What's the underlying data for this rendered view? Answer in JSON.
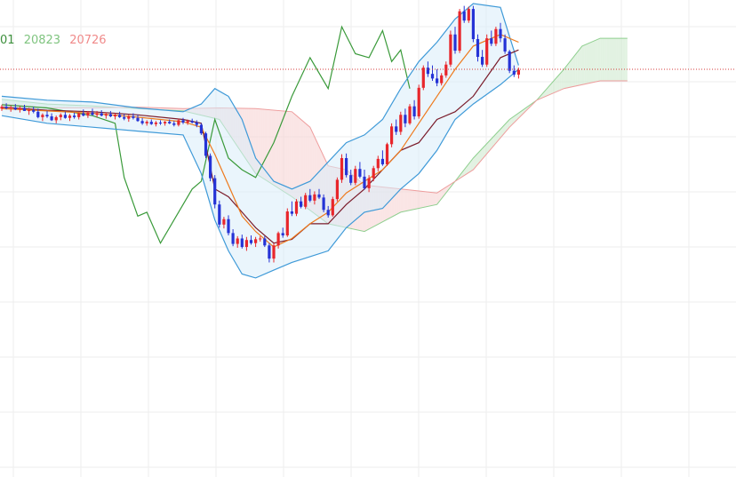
{
  "legend": {
    "v1": "01",
    "v2": "20823",
    "v3": "20726"
  },
  "colors": {
    "up": "#e8262b",
    "down": "#2533d6",
    "lagging": "#3a9a3a",
    "bb": "#3f9ad8",
    "bb_fill": "#d9ecfa",
    "ma_orange": "#ee7a1d",
    "ma_dark": "#7a1b2a",
    "kumo_green": "#cfe9cf",
    "kumo_red": "#f6d3d3",
    "span_a": "#8fcf8f",
    "span_b": "#ee9d9d",
    "price_line": "#d43a3a",
    "legend_1": "#3c8f3c",
    "legend_2": "#7fc47f",
    "legend_3": "#f08a8a",
    "grid": "#eeeeee"
  },
  "chart_data": {
    "type": "candlestick",
    "x_range": [
      0,
      160
    ],
    "y_range": [
      20000,
      21000
    ],
    "current_price_line": 20830,
    "candles": [
      [
        0,
        20728,
        20738,
        20722,
        20733
      ],
      [
        1,
        20733,
        20742,
        20726,
        20729
      ],
      [
        2,
        20729,
        20736,
        20720,
        20731
      ],
      [
        3,
        20731,
        20740,
        20724,
        20726
      ],
      [
        4,
        20726,
        20734,
        20718,
        20730
      ],
      [
        5,
        20730,
        20738,
        20722,
        20722
      ],
      [
        6,
        20722,
        20730,
        20712,
        20724
      ],
      [
        7,
        20724,
        20733,
        20716,
        20720
      ],
      [
        8,
        20720,
        20728,
        20703,
        20706
      ],
      [
        9,
        20706,
        20716,
        20696,
        20712
      ],
      [
        10,
        20712,
        20722,
        20704,
        20708
      ],
      [
        11,
        20708,
        20716,
        20696,
        20698
      ],
      [
        12,
        20698,
        20710,
        20690,
        20706
      ],
      [
        13,
        20706,
        20716,
        20698,
        20712
      ],
      [
        14,
        20712,
        20720,
        20702,
        20704
      ],
      [
        15,
        20704,
        20714,
        20696,
        20710
      ],
      [
        16,
        20710,
        20718,
        20702,
        20706
      ],
      [
        17,
        20706,
        20718,
        20700,
        20716
      ],
      [
        18,
        20716,
        20726,
        20708,
        20710
      ],
      [
        19,
        20710,
        20722,
        20704,
        20718
      ],
      [
        20,
        20718,
        20728,
        20710,
        20712
      ],
      [
        21,
        20712,
        20722,
        20706,
        20716
      ],
      [
        22,
        20716,
        20724,
        20708,
        20710
      ],
      [
        23,
        20710,
        20718,
        20702,
        20714
      ],
      [
        24,
        20714,
        20722,
        20706,
        20708
      ],
      [
        25,
        20708,
        20716,
        20700,
        20712
      ],
      [
        26,
        20712,
        20720,
        20704,
        20706
      ],
      [
        27,
        20706,
        20714,
        20698,
        20702
      ],
      [
        28,
        20702,
        20712,
        20694,
        20708
      ],
      [
        29,
        20708,
        20716,
        20700,
        20704
      ],
      [
        30,
        20704,
        20712,
        20694,
        20696
      ],
      [
        31,
        20696,
        20704,
        20686,
        20690
      ],
      [
        32,
        20690,
        20698,
        20684,
        20694
      ],
      [
        33,
        20694,
        20700,
        20686,
        20688
      ],
      [
        34,
        20688,
        20696,
        20682,
        20692
      ],
      [
        35,
        20692,
        20698,
        20686,
        20690
      ],
      [
        36,
        20690,
        20696,
        20684,
        20694
      ],
      [
        37,
        20694,
        20700,
        20688,
        20690
      ],
      [
        38,
        20690,
        20696,
        20682,
        20686
      ],
      [
        39,
        20686,
        20702,
        20682,
        20698
      ],
      [
        40,
        20698,
        20704,
        20688,
        20692
      ],
      [
        41,
        20692,
        20700,
        20686,
        20696
      ],
      [
        42,
        20696,
        20702,
        20690,
        20692
      ],
      [
        43,
        20692,
        20698,
        20680,
        20686
      ],
      [
        44,
        20686,
        20690,
        20660,
        20664
      ],
      [
        45,
        20664,
        20668,
        20600,
        20606
      ],
      [
        46,
        20606,
        20612,
        20540,
        20548
      ],
      [
        47,
        20548,
        20556,
        20470,
        20480
      ],
      [
        48,
        20480,
        20490,
        20420,
        20428
      ],
      [
        49,
        20428,
        20448,
        20418,
        20442
      ],
      [
        50,
        20442,
        20452,
        20400,
        20406
      ],
      [
        51,
        20406,
        20416,
        20372,
        20378
      ],
      [
        52,
        20378,
        20398,
        20368,
        20392
      ],
      [
        53,
        20392,
        20402,
        20366,
        20370
      ],
      [
        54,
        20370,
        20396,
        20360,
        20388
      ],
      [
        55,
        20388,
        20400,
        20376,
        20380
      ],
      [
        56,
        20380,
        20396,
        20370,
        20390
      ],
      [
        57,
        20390,
        20398,
        20384,
        20392
      ],
      [
        58,
        20392,
        20398,
        20370,
        20374
      ],
      [
        59,
        20374,
        20380,
        20330,
        20340
      ],
      [
        60,
        20340,
        20380,
        20330,
        20374
      ],
      [
        61,
        20374,
        20410,
        20366,
        20406
      ],
      [
        62,
        20406,
        20420,
        20394,
        20400
      ],
      [
        63,
        20400,
        20470,
        20396,
        20462
      ],
      [
        64,
        20462,
        20488,
        20450,
        20456
      ],
      [
        65,
        20456,
        20494,
        20450,
        20488
      ],
      [
        66,
        20488,
        20500,
        20470,
        20474
      ],
      [
        67,
        20474,
        20510,
        20468,
        20504
      ],
      [
        68,
        20504,
        20520,
        20486,
        20490
      ],
      [
        69,
        20490,
        20514,
        20480,
        20506
      ],
      [
        70,
        20506,
        20520,
        20494,
        20498
      ],
      [
        71,
        20498,
        20506,
        20460,
        20466
      ],
      [
        72,
        20466,
        20476,
        20446,
        20452
      ],
      [
        73,
        20452,
        20500,
        20448,
        20494
      ],
      [
        74,
        20494,
        20550,
        20488,
        20544
      ],
      [
        75,
        20544,
        20610,
        20536,
        20600
      ],
      [
        76,
        20600,
        20612,
        20550,
        20556
      ],
      [
        77,
        20556,
        20570,
        20530,
        20536
      ],
      [
        78,
        20536,
        20580,
        20530,
        20572
      ],
      [
        79,
        20572,
        20590,
        20548,
        20552
      ],
      [
        80,
        20552,
        20570,
        20518,
        20522
      ],
      [
        81,
        20522,
        20556,
        20512,
        20548
      ],
      [
        82,
        20548,
        20580,
        20540,
        20574
      ],
      [
        83,
        20574,
        20606,
        20566,
        20598
      ],
      [
        84,
        20598,
        20620,
        20580,
        20584
      ],
      [
        85,
        20584,
        20640,
        20580,
        20636
      ],
      [
        86,
        20636,
        20690,
        20628,
        20682
      ],
      [
        87,
        20682,
        20700,
        20660,
        20668
      ],
      [
        88,
        20668,
        20720,
        20660,
        20712
      ],
      [
        89,
        20712,
        20728,
        20680,
        20690
      ],
      [
        90,
        20690,
        20740,
        20686,
        20734
      ],
      [
        91,
        20734,
        20750,
        20700,
        20708
      ],
      [
        92,
        20708,
        20790,
        20702,
        20782
      ],
      [
        93,
        20782,
        20840,
        20776,
        20834
      ],
      [
        94,
        20834,
        20850,
        20810,
        20818
      ],
      [
        95,
        20818,
        20840,
        20800,
        20806
      ],
      [
        96,
        20806,
        20830,
        20786,
        20794
      ],
      [
        97,
        20794,
        20820,
        20788,
        20814
      ],
      [
        98,
        20814,
        20850,
        20808,
        20842
      ],
      [
        99,
        20842,
        20930,
        20836,
        20920
      ],
      [
        100,
        20920,
        20940,
        20870,
        20878
      ],
      [
        101,
        20878,
        20986,
        20872,
        20980
      ],
      [
        102,
        20980,
        20994,
        20950,
        20956
      ],
      [
        103,
        20956,
        20992,
        20950,
        20986
      ],
      [
        104,
        20986,
        20994,
        20900,
        20908
      ],
      [
        105,
        20908,
        20920,
        20850,
        20862
      ],
      [
        106,
        20862,
        20880,
        20836,
        20842
      ],
      [
        107,
        20842,
        20920,
        20836,
        20910
      ],
      [
        108,
        20910,
        20930,
        20890,
        20896
      ],
      [
        109,
        20896,
        20940,
        20890,
        20934
      ],
      [
        110,
        20934,
        20950,
        20900,
        20910
      ],
      [
        111,
        20910,
        20920,
        20870,
        20876
      ],
      [
        112,
        20876,
        20880,
        20820,
        20826
      ],
      [
        113,
        20826,
        20840,
        20810,
        20816
      ],
      [
        114,
        20816,
        20834,
        20806,
        20828
      ]
    ],
    "bb_upper": [
      [
        0,
        20760
      ],
      [
        10,
        20750
      ],
      [
        20,
        20745
      ],
      [
        30,
        20730
      ],
      [
        40,
        20720
      ],
      [
        44,
        20740
      ],
      [
        47,
        20780
      ],
      [
        50,
        20760
      ],
      [
        53,
        20700
      ],
      [
        56,
        20600
      ],
      [
        60,
        20540
      ],
      [
        64,
        20520
      ],
      [
        68,
        20540
      ],
      [
        72,
        20590
      ],
      [
        76,
        20640
      ],
      [
        80,
        20660
      ],
      [
        84,
        20700
      ],
      [
        88,
        20780
      ],
      [
        92,
        20850
      ],
      [
        96,
        20900
      ],
      [
        100,
        20960
      ],
      [
        104,
        21000
      ],
      [
        110,
        20990
      ],
      [
        114,
        20840
      ]
    ],
    "bb_lower": [
      [
        0,
        20710
      ],
      [
        10,
        20690
      ],
      [
        20,
        20680
      ],
      [
        30,
        20670
      ],
      [
        40,
        20660
      ],
      [
        44,
        20560
      ],
      [
        47,
        20440
      ],
      [
        50,
        20360
      ],
      [
        53,
        20300
      ],
      [
        56,
        20290
      ],
      [
        60,
        20310
      ],
      [
        64,
        20330
      ],
      [
        68,
        20345
      ],
      [
        72,
        20360
      ],
      [
        76,
        20420
      ],
      [
        80,
        20460
      ],
      [
        84,
        20470
      ],
      [
        88,
        20520
      ],
      [
        92,
        20560
      ],
      [
        96,
        20620
      ],
      [
        100,
        20700
      ],
      [
        104,
        20740
      ],
      [
        110,
        20790
      ],
      [
        114,
        20830
      ]
    ],
    "ma_orange": [
      [
        0,
        20728
      ],
      [
        10,
        20722
      ],
      [
        20,
        20716
      ],
      [
        30,
        20706
      ],
      [
        40,
        20694
      ],
      [
        44,
        20680
      ],
      [
        47,
        20610
      ],
      [
        50,
        20530
      ],
      [
        53,
        20450
      ],
      [
        56,
        20410
      ],
      [
        60,
        20370
      ],
      [
        64,
        20392
      ],
      [
        68,
        20430
      ],
      [
        72,
        20460
      ],
      [
        76,
        20510
      ],
      [
        80,
        20540
      ],
      [
        84,
        20570
      ],
      [
        88,
        20620
      ],
      [
        92,
        20690
      ],
      [
        96,
        20760
      ],
      [
        100,
        20830
      ],
      [
        104,
        20890
      ],
      [
        110,
        20920
      ],
      [
        114,
        20900
      ]
    ],
    "ma_dark": [
      [
        0,
        20732
      ],
      [
        10,
        20724
      ],
      [
        20,
        20720
      ],
      [
        30,
        20712
      ],
      [
        40,
        20700
      ],
      [
        44,
        20690
      ],
      [
        47,
        20520
      ],
      [
        50,
        20500
      ],
      [
        53,
        20460
      ],
      [
        56,
        20420
      ],
      [
        60,
        20380
      ],
      [
        64,
        20390
      ],
      [
        68,
        20430
      ],
      [
        72,
        20430
      ],
      [
        76,
        20480
      ],
      [
        80,
        20520
      ],
      [
        84,
        20570
      ],
      [
        88,
        20620
      ],
      [
        92,
        20640
      ],
      [
        96,
        20700
      ],
      [
        100,
        20720
      ],
      [
        104,
        20760
      ],
      [
        110,
        20860
      ],
      [
        114,
        20880
      ]
    ],
    "lagging_span": [
      [
        0,
        20738
      ],
      [
        10,
        20730
      ],
      [
        20,
        20710
      ],
      [
        25,
        20690
      ],
      [
        27,
        20550
      ],
      [
        30,
        20450
      ],
      [
        32,
        20460
      ],
      [
        35,
        20380
      ],
      [
        38,
        20440
      ],
      [
        42,
        20520
      ],
      [
        44,
        20540
      ],
      [
        47,
        20700
      ],
      [
        50,
        20600
      ],
      [
        53,
        20570
      ],
      [
        56,
        20550
      ],
      [
        60,
        20640
      ],
      [
        64,
        20760
      ],
      [
        68,
        20860
      ],
      [
        72,
        20780
      ],
      [
        75,
        20940
      ],
      [
        78,
        20870
      ],
      [
        81,
        20860
      ],
      [
        84,
        20930
      ],
      [
        86,
        20850
      ],
      [
        88,
        20880
      ],
      [
        90,
        20780
      ]
    ],
    "span_a": [
      [
        0,
        20752
      ],
      [
        10,
        20740
      ],
      [
        20,
        20735
      ],
      [
        30,
        20728
      ],
      [
        40,
        20722
      ],
      [
        48,
        20700
      ],
      [
        56,
        20560
      ],
      [
        64,
        20500
      ],
      [
        72,
        20430
      ],
      [
        80,
        20410
      ],
      [
        88,
        20460
      ],
      [
        96,
        20480
      ],
      [
        104,
        20600
      ],
      [
        112,
        20700
      ],
      [
        118,
        20750
      ],
      [
        124,
        20830
      ],
      [
        128,
        20890
      ],
      [
        132,
        20910
      ],
      [
        138,
        20910
      ]
    ],
    "span_b": [
      [
        0,
        20740
      ],
      [
        10,
        20730
      ],
      [
        20,
        20730
      ],
      [
        30,
        20732
      ],
      [
        40,
        20728
      ],
      [
        48,
        20730
      ],
      [
        56,
        20728
      ],
      [
        64,
        20720
      ],
      [
        68,
        20680
      ],
      [
        72,
        20580
      ],
      [
        76,
        20570
      ],
      [
        80,
        20530
      ],
      [
        88,
        20520
      ],
      [
        96,
        20510
      ],
      [
        104,
        20570
      ],
      [
        112,
        20680
      ],
      [
        118,
        20750
      ],
      [
        124,
        20780
      ],
      [
        132,
        20800
      ],
      [
        138,
        20800
      ]
    ]
  }
}
